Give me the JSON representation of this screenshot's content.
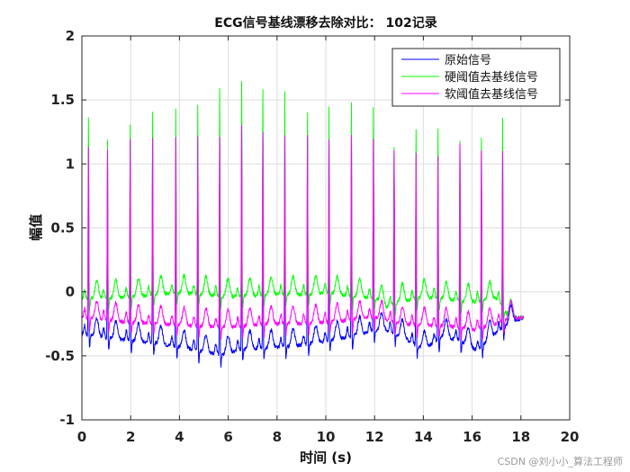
{
  "chart_data": {
    "type": "line",
    "title": "ECG信号基线漂移去除对比： 102记录",
    "xlabel": "时间 (s)",
    "ylabel": "幅值",
    "xlim": [
      0,
      20
    ],
    "ylim": [
      -1,
      2
    ],
    "xticks": [
      "0",
      "2",
      "4",
      "6",
      "8",
      "10",
      "12",
      "14",
      "16",
      "18",
      "20"
    ],
    "yticks": [
      "-1",
      "-0.5",
      "0",
      "0.5",
      "1",
      "1.5",
      "2"
    ],
    "grid": true,
    "legend_position": "top-right",
    "beats": {
      "times": [
        0.27,
        1.05,
        1.98,
        2.9,
        3.85,
        4.75,
        5.65,
        6.55,
        7.42,
        8.32,
        9.25,
        10.13,
        11.05,
        11.95,
        12.8,
        13.7,
        14.6,
        15.5,
        16.38,
        17.25
      ],
      "original_peaks": [
        1.14,
        1.1,
        1.18,
        1.22,
        1.21,
        1.19,
        1.2,
        1.28,
        1.22,
        1.21,
        1.22,
        1.2,
        1.22,
        1.2,
        1.1,
        1.1,
        1.07,
        1.17,
        1.12,
        1.1
      ],
      "hard_peaks": [
        1.37,
        1.2,
        1.3,
        1.42,
        1.44,
        1.48,
        1.59,
        1.66,
        1.6,
        1.58,
        1.41,
        1.44,
        1.48,
        1.44,
        1.15,
        1.28,
        1.28,
        1.18,
        1.22,
        1.38
      ],
      "soft_peaks": [
        1.14,
        1.12,
        1.19,
        1.22,
        1.22,
        1.21,
        1.22,
        1.3,
        1.24,
        1.22,
        1.23,
        1.21,
        1.23,
        1.2,
        1.1,
        1.1,
        1.07,
        1.17,
        1.12,
        1.1
      ]
    },
    "series": [
      {
        "name": "原始信号",
        "color": "#0000ff",
        "baseline": {
          "x": [
            0,
            1,
            2,
            3,
            4,
            5,
            5.8,
            6.5,
            7.5,
            8.5,
            9.5,
            10.5,
            11.5,
            12,
            12.5,
            13.2,
            14,
            14.8,
            15.5,
            16.2,
            16.8,
            17.5,
            18.1
          ],
          "y": [
            -0.33,
            -0.36,
            -0.38,
            -0.4,
            -0.43,
            -0.47,
            -0.49,
            -0.45,
            -0.44,
            -0.43,
            -0.4,
            -0.37,
            -0.33,
            -0.3,
            -0.3,
            -0.36,
            -0.45,
            -0.35,
            -0.38,
            -0.46,
            -0.35,
            -0.25,
            -0.2
          ]
        }
      },
      {
        "name": "硬阈值去基线信号",
        "color": "#00ff00",
        "baseline": {
          "x": [
            0,
            1,
            2,
            3,
            4,
            5,
            6,
            7,
            8,
            9,
            10,
            11,
            12,
            12.5,
            13,
            14,
            15,
            16,
            17,
            17.5,
            18.1
          ],
          "y": [
            -0.05,
            -0.05,
            -0.04,
            -0.02,
            -0.01,
            -0.02,
            -0.04,
            -0.03,
            -0.02,
            -0.02,
            -0.01,
            -0.03,
            -0.05,
            -0.12,
            -0.08,
            -0.04,
            -0.06,
            -0.08,
            -0.05,
            -0.2,
            -0.2
          ]
        }
      },
      {
        "name": "软阈值去基线信号",
        "color": "#ff00ff",
        "baseline": {
          "x": [
            0,
            1,
            2,
            3,
            4,
            5,
            6,
            7,
            8,
            9,
            10,
            11,
            12,
            12.5,
            13,
            14,
            15,
            16,
            17,
            17.5,
            18.1
          ],
          "y": [
            -0.2,
            -0.22,
            -0.24,
            -0.25,
            -0.26,
            -0.27,
            -0.28,
            -0.26,
            -0.25,
            -0.25,
            -0.24,
            -0.22,
            -0.2,
            -0.22,
            -0.25,
            -0.26,
            -0.27,
            -0.3,
            -0.25,
            -0.21,
            -0.2
          ]
        }
      }
    ]
  },
  "watermark": "CSDN @刘小小_算法工程师"
}
